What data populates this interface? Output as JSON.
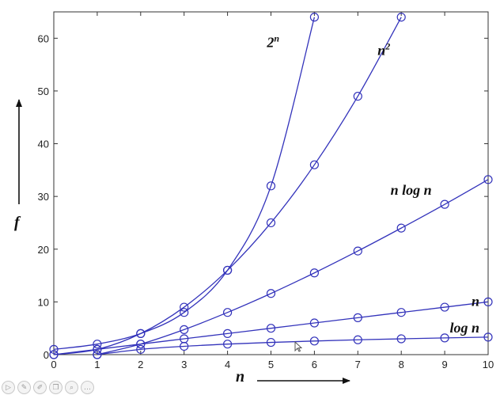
{
  "chart_data": {
    "type": "line",
    "xlabel": "n",
    "ylabel": "f",
    "xlim": [
      0,
      10
    ],
    "ylim": [
      0,
      65
    ],
    "xticks": [
      0,
      1,
      2,
      3,
      4,
      5,
      6,
      7,
      8,
      9,
      10
    ],
    "yticks": [
      0,
      10,
      20,
      30,
      40,
      50,
      60
    ],
    "grid": false,
    "legend": "none",
    "marker": "circle",
    "series_color": "#3333bb",
    "series": [
      {
        "name": "2^n",
        "label_main": "2",
        "label_sup": "n",
        "x": [
          0,
          1,
          2,
          3,
          4,
          5,
          6
        ],
        "y": [
          1,
          2,
          4,
          8,
          16,
          32,
          64
        ]
      },
      {
        "name": "n^2",
        "label_main": "n",
        "label_sup": "2",
        "x": [
          0,
          1,
          2,
          3,
          4,
          5,
          6,
          7,
          8
        ],
        "y": [
          0,
          1,
          4,
          9,
          16,
          25,
          36,
          49,
          64
        ]
      },
      {
        "name": "n log n",
        "label_main": "n log n",
        "label_sup": "",
        "x": [
          1,
          2,
          3,
          4,
          5,
          6,
          7,
          8,
          9,
          10
        ],
        "y": [
          0,
          2,
          4.75,
          8,
          11.6,
          15.5,
          19.65,
          24,
          28.5,
          33.2
        ]
      },
      {
        "name": "n",
        "label_main": "n",
        "label_sup": "",
        "x": [
          0,
          1,
          2,
          3,
          4,
          5,
          6,
          7,
          8,
          9,
          10
        ],
        "y": [
          0,
          1,
          2,
          3,
          4,
          5,
          6,
          7,
          8,
          9,
          10
        ]
      },
      {
        "name": "log n",
        "label_main": "log n",
        "label_sup": "",
        "x": [
          1,
          2,
          3,
          4,
          5,
          6,
          7,
          8,
          9,
          10
        ],
        "y": [
          0,
          1,
          1.58,
          2,
          2.32,
          2.58,
          2.81,
          3,
          3.17,
          3.32
        ]
      }
    ]
  },
  "toolbar": {
    "buttons": [
      {
        "name": "play-icon",
        "glyph": "▷"
      },
      {
        "name": "pen-icon",
        "glyph": "✎"
      },
      {
        "name": "highlighter-icon",
        "glyph": "✐"
      },
      {
        "name": "copy-icon",
        "glyph": "❐"
      },
      {
        "name": "zoom-icon",
        "glyph": "⌕"
      },
      {
        "name": "more-icon",
        "glyph": "…"
      }
    ]
  }
}
